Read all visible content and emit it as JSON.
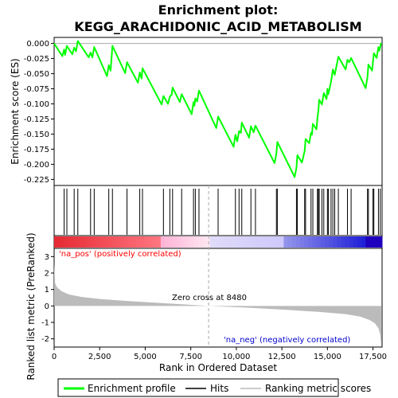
{
  "chart_data": {
    "type": "line",
    "title": [
      "Enrichment plot:",
      "KEGG_ARACHIDONIC_ACID_METABOLISM"
    ],
    "xlabel": "Rank in Ordered Dataset",
    "es_ylabel": "Enrichment score (ES)",
    "metric_ylabel": "Ranked list metric (PreRanked)",
    "xlim": [
      0,
      18000
    ],
    "x_ticks": [
      0,
      2500,
      5000,
      7500,
      10000,
      12500,
      15000,
      17500
    ],
    "x_tick_labels": [
      "0",
      "2,500",
      "5,000",
      "7,500",
      "10,000",
      "12,500",
      "15,000",
      "17,500"
    ],
    "es_ylim": [
      -0.235,
      0.01
    ],
    "es_ticks": [
      0.0,
      -0.025,
      -0.05,
      -0.075,
      -0.1,
      -0.125,
      -0.15,
      -0.175,
      -0.2,
      -0.225
    ],
    "es_tick_labels": [
      "0.000",
      "-0.025",
      "-0.050",
      "-0.075",
      "-0.100",
      "-0.125",
      "-0.150",
      "-0.175",
      "-0.200",
      "-0.225"
    ],
    "metric_ylim": [
      -2.5,
      3.5
    ],
    "metric_ticks": [
      3,
      2,
      1,
      0,
      -1,
      -2
    ],
    "metric_tick_labels": [
      "3",
      "2",
      "1",
      "0",
      "-1",
      "-2"
    ],
    "hits": [
      0,
      550,
      700,
      1100,
      1300,
      2000,
      2200,
      3000,
      3200,
      4000,
      4700,
      4850,
      6000,
      6350,
      6500,
      7000,
      7650,
      7750,
      7950,
      9000,
      9950,
      10150,
      10300,
      10800,
      11050,
      12200,
      12250,
      13300,
      13350,
      13750,
      13800,
      14100,
      14200,
      14450,
      14500,
      14550,
      14700,
      14800,
      15000,
      15050,
      15200,
      15300,
      15400,
      15600,
      16100,
      16300,
      17200,
      17250,
      17500,
      17550,
      17800,
      17900
    ],
    "es_profile": [
      [
        0,
        0
      ],
      [
        450,
        -0.021
      ],
      [
        550,
        -0.01
      ],
      [
        600,
        -0.019
      ],
      [
        700,
        -0.004
      ],
      [
        1000,
        -0.018
      ],
      [
        1100,
        -0.007
      ],
      [
        1200,
        -0.013
      ],
      [
        1300,
        0.004
      ],
      [
        1900,
        -0.023
      ],
      [
        2000,
        -0.015
      ],
      [
        2100,
        -0.023
      ],
      [
        2200,
        -0.006
      ],
      [
        2900,
        -0.054
      ],
      [
        3000,
        -0.036
      ],
      [
        3100,
        -0.045
      ],
      [
        3200,
        -0.004
      ],
      [
        3900,
        -0.049
      ],
      [
        4000,
        -0.031
      ],
      [
        4600,
        -0.065
      ],
      [
        4700,
        -0.048
      ],
      [
        4800,
        -0.058
      ],
      [
        4850,
        -0.041
      ],
      [
        5900,
        -0.101
      ],
      [
        6000,
        -0.087
      ],
      [
        6250,
        -0.1
      ],
      [
        6350,
        -0.088
      ],
      [
        6450,
        -0.085
      ],
      [
        6500,
        -0.073
      ],
      [
        6900,
        -0.097
      ],
      [
        7000,
        -0.084
      ],
      [
        7550,
        -0.117
      ],
      [
        7650,
        -0.097
      ],
      [
        7700,
        -0.103
      ],
      [
        7750,
        -0.091
      ],
      [
        7850,
        -0.096
      ],
      [
        7950,
        -0.078
      ],
      [
        8900,
        -0.14
      ],
      [
        9000,
        -0.121
      ],
      [
        9850,
        -0.171
      ],
      [
        9950,
        -0.151
      ],
      [
        10050,
        -0.162
      ],
      [
        10150,
        -0.145
      ],
      [
        10250,
        -0.148
      ],
      [
        10300,
        -0.131
      ],
      [
        10700,
        -0.156
      ],
      [
        10800,
        -0.137
      ],
      [
        10950,
        -0.147
      ],
      [
        11050,
        -0.136
      ],
      [
        12100,
        -0.198
      ],
      [
        12200,
        -0.182
      ],
      [
        12250,
        -0.163
      ],
      [
        13200,
        -0.221
      ],
      [
        13300,
        -0.206
      ],
      [
        13350,
        -0.185
      ],
      [
        13600,
        -0.197
      ],
      [
        13750,
        -0.178
      ],
      [
        13800,
        -0.158
      ],
      [
        14000,
        -0.165
      ],
      [
        14100,
        -0.148
      ],
      [
        14150,
        -0.151
      ],
      [
        14200,
        -0.133
      ],
      [
        14400,
        -0.142
      ],
      [
        14450,
        -0.124
      ],
      [
        14500,
        -0.112
      ],
      [
        14550,
        -0.093
      ],
      [
        14700,
        -0.101
      ],
      [
        14800,
        -0.082
      ],
      [
        14950,
        -0.092
      ],
      [
        15000,
        -0.075
      ],
      [
        15050,
        -0.084
      ],
      [
        15200,
        -0.063
      ],
      [
        15300,
        -0.043
      ],
      [
        15400,
        -0.052
      ],
      [
        15600,
        -0.022
      ],
      [
        16000,
        -0.043
      ],
      [
        16100,
        -0.027
      ],
      [
        16200,
        -0.031
      ],
      [
        16300,
        -0.024
      ],
      [
        17100,
        -0.074
      ],
      [
        17200,
        -0.055
      ],
      [
        17250,
        -0.035
      ],
      [
        17450,
        -0.045
      ],
      [
        17550,
        -0.016
      ],
      [
        17700,
        -0.024
      ],
      [
        17800,
        -0.006
      ],
      [
        17850,
        -0.012
      ],
      [
        17950,
        0.001
      ]
    ],
    "metric_profile": [
      [
        0,
        2.6
      ],
      [
        50,
        1.4
      ],
      [
        150,
        1.15
      ],
      [
        400,
        0.9
      ],
      [
        800,
        0.7
      ],
      [
        1500,
        0.55
      ],
      [
        2500,
        0.42
      ],
      [
        4000,
        0.3
      ],
      [
        6000,
        0.17
      ],
      [
        8480,
        0.0
      ],
      [
        10500,
        -0.1
      ],
      [
        12500,
        -0.22
      ],
      [
        14500,
        -0.36
      ],
      [
        16000,
        -0.5
      ],
      [
        16800,
        -0.65
      ],
      [
        17300,
        -0.85
      ],
      [
        17600,
        -1.05
      ],
      [
        17800,
        -1.35
      ],
      [
        17900,
        -1.75
      ],
      [
        17950,
        -2.45
      ]
    ],
    "zero_cross_label": "Zero cross at 8480",
    "zero_cross_x": 8480,
    "pos_label": "'na_pos' (positively correlated)",
    "neg_label": "'na_neg' (negatively correlated)",
    "legend": [
      "Enrichment profile",
      "Hits",
      "Ranking metric scores"
    ],
    "colors": {
      "es_line": "#00ff00",
      "hits": "#000000",
      "metric_fill": "#bbbbbb",
      "pos_text": "#ff0000",
      "neg_text": "#0000cc",
      "zero_line": "#aaaaaa"
    }
  }
}
